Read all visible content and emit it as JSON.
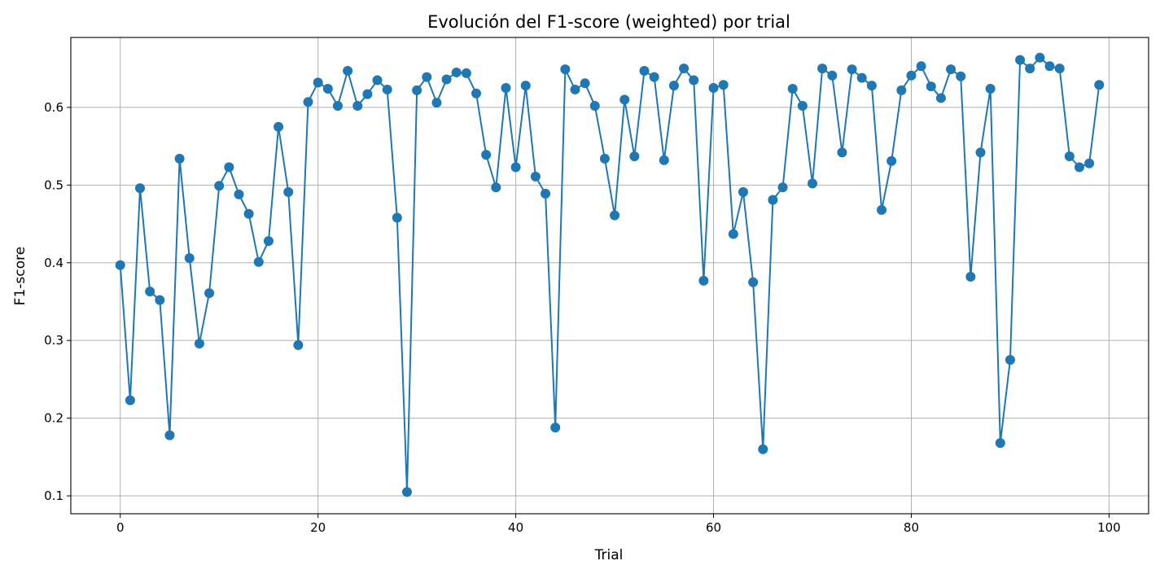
{
  "chart_data": {
    "type": "line",
    "title": "Evolución del F1-score (weighted) por trial",
    "xlabel": "Trial",
    "ylabel": "F1-score",
    "xlim": [
      -5,
      104
    ],
    "ylim": [
      0.077,
      0.69
    ],
    "xticks": [
      0,
      20,
      40,
      60,
      80,
      100
    ],
    "yticks": [
      0.1,
      0.2,
      0.3,
      0.4,
      0.5,
      0.6
    ],
    "xtick_labels": [
      "0",
      "20",
      "40",
      "60",
      "80",
      "100"
    ],
    "ytick_labels": [
      "0.1",
      "0.2",
      "0.3",
      "0.4",
      "0.5",
      "0.6"
    ],
    "grid": true,
    "markers": "circle",
    "color": "#1f77b4",
    "x": [
      0,
      1,
      2,
      3,
      4,
      5,
      6,
      7,
      8,
      9,
      10,
      11,
      12,
      13,
      14,
      15,
      16,
      17,
      18,
      19,
      20,
      21,
      22,
      23,
      24,
      25,
      26,
      27,
      28,
      29,
      30,
      31,
      32,
      33,
      34,
      35,
      36,
      37,
      38,
      39,
      40,
      41,
      42,
      43,
      44,
      45,
      46,
      47,
      48,
      49,
      50,
      51,
      52,
      53,
      54,
      55,
      56,
      57,
      58,
      59,
      60,
      61,
      62,
      63,
      64,
      65,
      66,
      67,
      68,
      69,
      70,
      71,
      72,
      73,
      74,
      75,
      76,
      77,
      78,
      79,
      80,
      81,
      82,
      83,
      84,
      85,
      86,
      87,
      88,
      89,
      90,
      91,
      92,
      93,
      94,
      95,
      96,
      97,
      98,
      99
    ],
    "values": [
      0.397,
      0.223,
      0.496,
      0.363,
      0.352,
      0.178,
      0.534,
      0.406,
      0.296,
      0.361,
      0.499,
      0.523,
      0.488,
      0.463,
      0.401,
      0.428,
      0.575,
      0.491,
      0.294,
      0.607,
      0.632,
      0.624,
      0.602,
      0.647,
      0.602,
      0.617,
      0.635,
      0.623,
      0.458,
      0.105,
      0.622,
      0.639,
      0.606,
      0.636,
      0.645,
      0.644,
      0.618,
      0.539,
      0.497,
      0.625,
      0.523,
      0.628,
      0.511,
      0.489,
      0.188,
      0.649,
      0.623,
      0.631,
      0.602,
      0.534,
      0.461,
      0.61,
      0.537,
      0.647,
      0.639,
      0.532,
      0.628,
      0.65,
      0.635,
      0.377,
      0.625,
      0.629,
      0.437,
      0.491,
      0.375,
      0.16,
      0.481,
      0.497,
      0.624,
      0.602,
      0.502,
      0.65,
      0.641,
      0.542,
      0.649,
      0.638,
      0.628,
      0.468,
      0.531,
      0.622,
      0.641,
      0.653,
      0.627,
      0.612,
      0.649,
      0.64,
      0.382,
      0.542,
      0.624,
      0.168,
      0.275,
      0.661,
      0.65,
      0.664,
      0.653,
      0.65,
      0.537,
      0.523,
      0.528,
      0.629
    ]
  }
}
